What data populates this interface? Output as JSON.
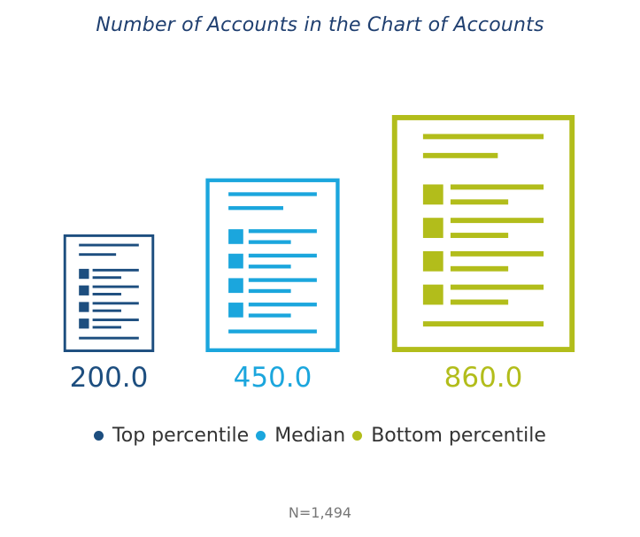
{
  "chart_data": {
    "type": "bar",
    "title": "Number of Accounts in the Chart of Accounts",
    "categories": [
      "Top percentile",
      "Median",
      "Bottom percentile"
    ],
    "values": [
      200.0,
      450.0,
      860.0
    ],
    "value_labels": [
      "200.0",
      "450.0",
      "860.0"
    ],
    "colors": [
      "#1d4e7f",
      "#1ba6dd",
      "#b2bd1b"
    ],
    "legend": {
      "placement": "bottom",
      "entries": [
        "Top percentile",
        "Median",
        "Bottom percentile"
      ]
    },
    "footnote": "N=1,494",
    "grid": false,
    "icon": "document-icon"
  }
}
